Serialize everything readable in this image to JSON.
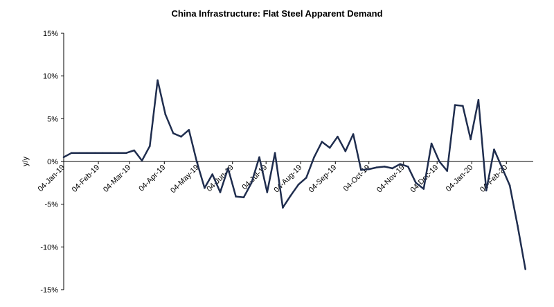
{
  "chart_data": {
    "type": "line",
    "title": "China Infrastructure: Flat Steel Apparent Demand",
    "xlabel": "",
    "ylabel": "y/y",
    "ylim": [
      -15,
      15
    ],
    "y_ticks": [
      "15%",
      "10%",
      "5%",
      "0%",
      "-5%",
      "-10%",
      "-15%"
    ],
    "y_tick_values": [
      15,
      10,
      5,
      0,
      -5,
      -10,
      -15
    ],
    "grid": false,
    "x_tick_labels": [
      "04-Jan-19",
      "04-Feb-19",
      "04-Mar-19",
      "04-Apr-19",
      "04-May-19",
      "04-Jun-19",
      "04-Jul-19",
      "04-Aug-19",
      "04-Sep-19",
      "04-Oct-19",
      "04-Nov-19",
      "04-Dec-19",
      "04-Jan-20",
      "04-Feb-20"
    ],
    "x_tick_dates": [
      "2019-01-04",
      "2019-02-04",
      "2019-03-04",
      "2019-04-04",
      "2019-05-04",
      "2019-06-04",
      "2019-07-04",
      "2019-08-04",
      "2019-09-04",
      "2019-10-04",
      "2019-11-04",
      "2019-12-04",
      "2020-01-04",
      "2020-02-04"
    ],
    "x_range": [
      "2019-01-04",
      "2020-02-28"
    ],
    "series": [
      {
        "color": "#1f2d4e",
        "points": [
          {
            "x": "2019-01-04",
            "y": 0.5
          },
          {
            "x": "2019-01-11",
            "y": 1.0
          },
          {
            "x": "2019-01-18",
            "y": 1.0
          },
          {
            "x": "2019-01-25",
            "y": 1.0
          },
          {
            "x": "2019-02-01",
            "y": 1.0
          },
          {
            "x": "2019-02-08",
            "y": 1.0
          },
          {
            "x": "2019-02-15",
            "y": 1.0
          },
          {
            "x": "2019-02-22",
            "y": 1.0
          },
          {
            "x": "2019-03-01",
            "y": 1.0
          },
          {
            "x": "2019-03-08",
            "y": 1.3
          },
          {
            "x": "2019-03-15",
            "y": 0.1
          },
          {
            "x": "2019-03-22",
            "y": 1.8
          },
          {
            "x": "2019-03-29",
            "y": 9.5
          },
          {
            "x": "2019-04-05",
            "y": 5.5
          },
          {
            "x": "2019-04-12",
            "y": 3.3
          },
          {
            "x": "2019-04-19",
            "y": 2.9
          },
          {
            "x": "2019-04-26",
            "y": 3.7
          },
          {
            "x": "2019-05-03",
            "y": 0.0
          },
          {
            "x": "2019-05-10",
            "y": -3.1
          },
          {
            "x": "2019-05-17",
            "y": -1.5
          },
          {
            "x": "2019-05-24",
            "y": -3.6
          },
          {
            "x": "2019-05-31",
            "y": -0.8
          },
          {
            "x": "2019-06-07",
            "y": -4.1
          },
          {
            "x": "2019-06-14",
            "y": -4.2
          },
          {
            "x": "2019-06-21",
            "y": -2.5
          },
          {
            "x": "2019-06-28",
            "y": 0.5
          },
          {
            "x": "2019-07-05",
            "y": -3.6
          },
          {
            "x": "2019-07-12",
            "y": 1.0
          },
          {
            "x": "2019-07-19",
            "y": -5.4
          },
          {
            "x": "2019-07-26",
            "y": -4.0
          },
          {
            "x": "2019-08-02",
            "y": -2.7
          },
          {
            "x": "2019-08-09",
            "y": -1.9
          },
          {
            "x": "2019-08-16",
            "y": 0.5
          },
          {
            "x": "2019-08-23",
            "y": 2.3
          },
          {
            "x": "2019-08-30",
            "y": 1.6
          },
          {
            "x": "2019-09-06",
            "y": 2.9
          },
          {
            "x": "2019-09-13",
            "y": 1.2
          },
          {
            "x": "2019-09-20",
            "y": 3.2
          },
          {
            "x": "2019-09-27",
            "y": -1.0
          },
          {
            "x": "2019-10-04",
            "y": -0.9
          },
          {
            "x": "2019-10-11",
            "y": -0.7
          },
          {
            "x": "2019-10-18",
            "y": -0.6
          },
          {
            "x": "2019-10-25",
            "y": -0.8
          },
          {
            "x": "2019-11-01",
            "y": -0.3
          },
          {
            "x": "2019-11-08",
            "y": -0.6
          },
          {
            "x": "2019-11-15",
            "y": -2.5
          },
          {
            "x": "2019-11-22",
            "y": -3.2
          },
          {
            "x": "2019-11-29",
            "y": 2.1
          },
          {
            "x": "2019-12-06",
            "y": 0.0
          },
          {
            "x": "2019-12-13",
            "y": -1.1
          },
          {
            "x": "2019-12-20",
            "y": 6.6
          },
          {
            "x": "2019-12-27",
            "y": 6.5
          },
          {
            "x": "2020-01-03",
            "y": 2.6
          },
          {
            "x": "2020-01-10",
            "y": 7.2
          },
          {
            "x": "2020-01-17",
            "y": -3.4
          },
          {
            "x": "2020-01-24",
            "y": 1.4
          },
          {
            "x": "2020-01-31",
            "y": -0.7
          },
          {
            "x": "2020-02-07",
            "y": -2.8
          },
          {
            "x": "2020-02-14",
            "y": -7.5
          },
          {
            "x": "2020-02-21",
            "y": -12.6
          }
        ]
      }
    ]
  }
}
